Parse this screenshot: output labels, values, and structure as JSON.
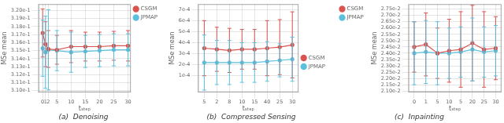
{
  "chart_data": [
    {
      "type": "line",
      "title": "(a)  Denoising",
      "xlabel": "tₛₜₑₚ",
      "ylabel": "MSe mean",
      "x": [
        0,
        1,
        2,
        5,
        10,
        15,
        20,
        25,
        30
      ],
      "series": [
        {
          "name": "CSGM",
          "color": "#d9534f",
          "values": [
            0.3172,
            0.3158,
            0.3152,
            0.3151,
            0.3155,
            0.3155,
            0.3155,
            0.3156,
            0.3156
          ],
          "errors": [
            0.003,
            0.0028,
            0.0023,
            0.0018,
            0.002,
            0.0018,
            0.0018,
            0.0018,
            0.0019
          ]
        },
        {
          "name": "JPMAP",
          "color": "#5bc0de",
          "values": [
            0.3153,
            0.3148,
            0.3151,
            0.315,
            0.3148,
            0.3149,
            0.315,
            0.3151,
            0.3151
          ],
          "errors": [
            0.0035,
            0.0045,
            0.005,
            0.0025,
            0.0025,
            0.002,
            0.002,
            0.002,
            0.002
          ]
        }
      ],
      "xlim": [
        -1.5,
        31
      ],
      "xticks": [
        0,
        1,
        2,
        5,
        10,
        15,
        20,
        25,
        30
      ],
      "ylim": [
        0.3098,
        0.3208
      ],
      "yticks": [
        {
          "value": 0.31,
          "label": "3.10e-1"
        },
        {
          "value": 0.311,
          "label": "3.11e-1"
        },
        {
          "value": 0.312,
          "label": "3.12e-1"
        },
        {
          "value": 0.313,
          "label": "3.13e-1"
        },
        {
          "value": 0.314,
          "label": "3.14e-1"
        },
        {
          "value": 0.315,
          "label": "3.15e-1"
        },
        {
          "value": 0.316,
          "label": "3.16e-1"
        },
        {
          "value": 0.317,
          "label": "3.17e-1"
        },
        {
          "value": 0.318,
          "label": "3.18e-1"
        },
        {
          "value": 0.319,
          "label": "3.19e-1"
        },
        {
          "value": 0.32,
          "label": "3.20e-1"
        }
      ],
      "marker": "circle",
      "legend": "upper right",
      "grid": true
    },
    {
      "type": "line",
      "title": "(b)  Compressed Sensing",
      "xlabel": "tₛₜₑₚ",
      "ylabel": "MSe mean",
      "categories": [
        "5",
        "2",
        "8",
        "10",
        "15",
        "40",
        "25",
        "30"
      ],
      "series": [
        {
          "name": "CSGM",
          "color": "#d9534f",
          "values": [
            0.00035,
            0.00034,
            0.00033,
            0.00034,
            0.00034,
            0.00035,
            0.00036,
            0.00038
          ],
          "errors": [
            0.00025,
            0.0002,
            0.0002,
            0.00018,
            0.00018,
            0.00025,
            0.00025,
            0.0003
          ]
        },
        {
          "name": "JPMAP",
          "color": "#5bc0de",
          "values": [
            0.00022,
            0.00022,
            0.00022,
            0.00022,
            0.00022,
            0.00023,
            0.00024,
            0.00025
          ],
          "errors": [
            0.00025,
            0.0002,
            0.0002,
            0.00018,
            0.00018,
            0.00018,
            0.00015,
            0.0002
          ]
        }
      ],
      "ylim": [
        -5e-05,
        0.00075
      ],
      "yticks": [
        {
          "value": 0.0001,
          "label": "1e-4"
        },
        {
          "value": 0.0002,
          "label": "2e-4"
        },
        {
          "value": 0.0003,
          "label": "3e-4"
        },
        {
          "value": 0.0004,
          "label": "4e-4"
        },
        {
          "value": 0.0005,
          "label": "5e-4"
        },
        {
          "value": 0.0006,
          "label": "6e-4"
        },
        {
          "value": 0.0007,
          "label": "7e-4"
        }
      ],
      "marker": "circle",
      "legend": "center right",
      "grid": true
    },
    {
      "type": "line",
      "title": "(c)  Inpainting",
      "xlabel": "tₛₜₑₚ",
      "ylabel": "MSe mean",
      "categories": [
        "0",
        "1",
        "5",
        "10",
        "5",
        "20",
        "25",
        "30"
      ],
      "series": [
        {
          "name": "CSGM",
          "color": "#d9534f",
          "values": [
            0.0245,
            0.0247,
            0.024,
            0.0242,
            0.0243,
            0.0248,
            0.0243,
            0.0244
          ],
          "errors": [
            0.002,
            0.0025,
            0.002,
            0.0025,
            0.003,
            0.003,
            0.003,
            0.0025
          ]
        },
        {
          "name": "JPMAP",
          "color": "#5bc0de",
          "values": [
            0.024,
            0.0241,
            0.024,
            0.024,
            0.0241,
            0.0243,
            0.0241,
            0.0242
          ],
          "errors": [
            0.0025,
            0.0025,
            0.0025,
            0.002,
            0.002,
            0.0025,
            0.002,
            0.002
          ]
        }
      ],
      "ylim": [
        0.0209,
        0.0279
      ],
      "yticks": [
        {
          "value": 0.021,
          "label": "2.10e-2"
        },
        {
          "value": 0.0215,
          "label": "2.15e-2"
        },
        {
          "value": 0.022,
          "label": "2.20e-2"
        },
        {
          "value": 0.0225,
          "label": "2.25e-2"
        },
        {
          "value": 0.023,
          "label": "2.30e-2"
        },
        {
          "value": 0.0235,
          "label": "2.35e-2"
        },
        {
          "value": 0.024,
          "label": "2.40e-2"
        },
        {
          "value": 0.0245,
          "label": "2.45e-2"
        },
        {
          "value": 0.025,
          "label": "2.50e-2"
        },
        {
          "value": 0.0255,
          "label": "2.55e-2"
        },
        {
          "value": 0.026,
          "label": "2.60e-2"
        },
        {
          "value": 0.0265,
          "label": "2.65e-2"
        },
        {
          "value": 0.027,
          "label": "2.70e-2"
        },
        {
          "value": 0.0275,
          "label": "2.75e-2"
        }
      ],
      "marker": "circle",
      "legend": "upper left",
      "grid": true
    }
  ]
}
